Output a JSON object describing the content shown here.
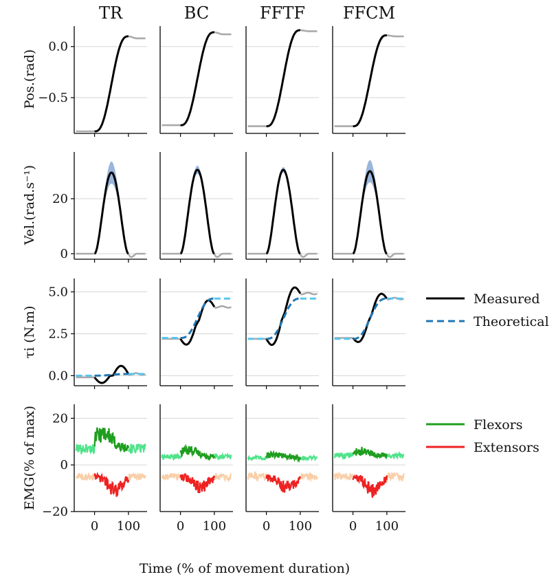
{
  "chart_data": {
    "type": "line",
    "title": "",
    "columns": [
      "TR",
      "BC",
      "FFTF",
      "FFCM"
    ],
    "xlabel": "Time (% of movement duration)",
    "x_ticks": [
      0,
      100
    ],
    "xlim": [
      -60,
      155
    ],
    "rows": [
      {
        "key": "pos",
        "ylabel": "Pos.(rad)",
        "ylim": [
          -0.85,
          0.2
        ],
        "y_ticks": [
          0.0,
          -0.5
        ],
        "y_tick_labels": [
          "0.0",
          "−0.5"
        ]
      },
      {
        "key": "vel",
        "ylabel": "Vel.(rad.s⁻¹)",
        "ylim": [
          -2,
          37
        ],
        "y_ticks": [
          20,
          0
        ],
        "y_tick_labels": [
          "20",
          "0"
        ]
      },
      {
        "key": "tau",
        "ylabel": "τi (N.m)",
        "ylim": [
          -0.6,
          5.8
        ],
        "y_ticks": [
          5.0,
          2.5,
          0.0
        ],
        "y_tick_labels": [
          "5.0",
          "2.5",
          "0.0"
        ]
      },
      {
        "key": "emg",
        "ylabel": "EMG(% of max)",
        "ylim": [
          -20,
          26
        ],
        "y_ticks": [
          20,
          0,
          -20
        ],
        "y_tick_labels": [
          "20",
          "0",
          "−20"
        ]
      }
    ],
    "series_params": {
      "pos": [
        {
          "condition": "TR",
          "start": -0.83,
          "end": 0.1,
          "settle": 0.08,
          "band": 0.012
        },
        {
          "condition": "BC",
          "start": -0.77,
          "end": 0.14,
          "settle": 0.12,
          "band": 0.008
        },
        {
          "condition": "FFTF",
          "start": -0.78,
          "end": 0.16,
          "settle": 0.15,
          "band": 0.008
        },
        {
          "condition": "FFCM",
          "start": -0.78,
          "end": 0.11,
          "settle": 0.1,
          "band": 0.04
        }
      ],
      "vel": [
        {
          "condition": "TR",
          "peak": 29.5,
          "band": 4
        },
        {
          "condition": "BC",
          "peak": 30.5,
          "band": 1.5
        },
        {
          "condition": "FFTF",
          "peak": 30.5,
          "band": 1.0
        },
        {
          "condition": "FFCM",
          "peak": 30.0,
          "band": 4
        }
      ],
      "tau_measured": [
        {
          "condition": "TR",
          "start": -0.1,
          "end": 0.1,
          "min": -0.45,
          "max": 0.6
        },
        {
          "condition": "BC",
          "start": 2.2,
          "end": 4.1,
          "min": 1.75,
          "max": 4.6
        },
        {
          "condition": "FFTF",
          "start": 2.2,
          "end": 4.9,
          "min": 1.7,
          "max": 5.4
        },
        {
          "condition": "FFCM",
          "start": 2.25,
          "end": 4.6,
          "min": 1.9,
          "max": 5.0
        }
      ],
      "tau_theoretical": [
        {
          "condition": "TR",
          "start": 0.0,
          "end": 0.1
        },
        {
          "condition": "BC",
          "start": 2.25,
          "end": 4.6
        },
        {
          "condition": "FFTF",
          "start": 2.2,
          "end": 4.6
        },
        {
          "condition": "FFCM",
          "start": 2.2,
          "end": 4.6
        }
      ],
      "emg_flexors": [
        {
          "condition": "TR",
          "baseline": 7,
          "peak": 14
        },
        {
          "condition": "BC",
          "baseline": 3.5,
          "peak": 6.5
        },
        {
          "condition": "FFTF",
          "baseline": 3,
          "peak": 4.5
        },
        {
          "condition": "FFCM",
          "baseline": 4,
          "peak": 6
        }
      ],
      "emg_extensors": [
        {
          "condition": "TR",
          "baseline": -5,
          "peak": -11
        },
        {
          "condition": "BC",
          "baseline": -5,
          "peak": -10
        },
        {
          "condition": "FFTF",
          "baseline": -5,
          "peak": -10
        },
        {
          "condition": "FFCM",
          "baseline": -5,
          "peak": -11
        }
      ]
    },
    "legend": [
      {
        "label": "Measured",
        "color": "#000000",
        "style": "solid"
      },
      {
        "label": "Theoretical",
        "color": "#1f77b4",
        "style": "dashed"
      },
      {
        "label": "Flexors",
        "color": "#1f9e1f",
        "style": "solid"
      },
      {
        "label": "Extensors",
        "color": "#ee2222",
        "style": "solid"
      }
    ],
    "colors": {
      "measured": "#000000",
      "outside": "#aaaaaa",
      "band": "#9ab6dc",
      "theoretical_in": "#1f77b4",
      "theoretical_out": "#59c4ee",
      "flexor": "#1f9e1f",
      "flexor_light": "#4fe38a",
      "extensor": "#ee2222",
      "extensor_light": "#f9cfa8",
      "grid": "#d6d6d6"
    }
  }
}
